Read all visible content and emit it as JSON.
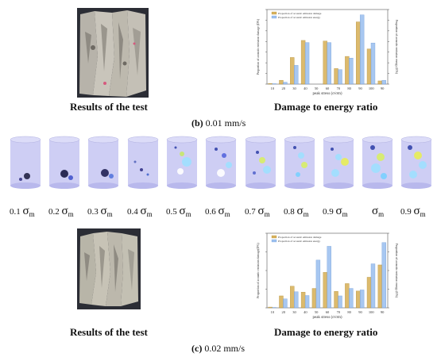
{
  "panel_b": {
    "label_letter": "(b)",
    "label_rate": "0.01 mm/s",
    "photo_caption": "Results of the test",
    "chart_caption": "Damage to energy ratio"
  },
  "panel_c": {
    "label_letter": "(c)",
    "label_rate": "0.02 mm/s",
    "photo_caption": "Results of the test",
    "chart_caption": "Damage to energy ratio"
  },
  "stress_levels": [
    {
      "coef": "0.1",
      "sym": "σ",
      "sub": "m"
    },
    {
      "coef": "0.2",
      "sym": "σ",
      "sub": "m"
    },
    {
      "coef": "0.3",
      "sym": "σ",
      "sub": "m"
    },
    {
      "coef": "0.4",
      "sym": "σ",
      "sub": "m"
    },
    {
      "coef": "0.5",
      "sym": "σ",
      "sub": "m"
    },
    {
      "coef": "0.6",
      "sym": "σ",
      "sub": "m"
    },
    {
      "coef": "0.7",
      "sym": "σ",
      "sub": "m"
    },
    {
      "coef": "0.8",
      "sym": "σ",
      "sub": "m"
    },
    {
      "coef": "0.9",
      "sym": "σ",
      "sub": "m"
    },
    {
      "coef": "",
      "sym": "σ",
      "sub": "m"
    },
    {
      "coef": "0.9",
      "sym": "σ",
      "sub": "m"
    }
  ],
  "colors": {
    "damage_bar": "#d9b35e",
    "energy_bar": "#9ec1f0",
    "damage_bar_edge": "#b08a2e",
    "energy_bar_edge": "#6d9ad6",
    "cylinder": "#c9c9f3",
    "photo_bg": "#2b2d35"
  },
  "chart_data": [
    {
      "type": "bar",
      "ylabel_left": "Proportion of acoustic emission damage (D%)",
      "ylabel_right": "Proportion of acoustic emission energy (E%)",
      "xlabel": "peak stress (σ/σm)",
      "categories": [
        "10",
        "20",
        "30",
        "40",
        "50",
        "60",
        "70",
        "80",
        "90",
        "100",
        "90"
      ],
      "ylim": [
        0,
        35
      ],
      "series": [
        {
          "name": "Proportion of acoustic emission damage",
          "values": [
            0.3,
            1.8,
            12.5,
            20.5,
            0,
            20.2,
            7.3,
            13,
            29.2,
            16.5,
            1.5
          ]
        },
        {
          "name": "Proportion of acoustic emission energy",
          "values": [
            0.2,
            0.9,
            8.8,
            19.5,
            0,
            19.5,
            6.8,
            12.2,
            32.5,
            19.3,
            1.8
          ]
        }
      ]
    },
    {
      "type": "bar",
      "ylabel_left": "Proportion of acoustic emission damage(D%)",
      "ylabel_right": "Proportion of acoustic emission energy (E%)",
      "xlabel": "peak stress (σ/σm)",
      "categories": [
        "10",
        "20",
        "30",
        "40",
        "50",
        "60",
        "70",
        "80",
        "90",
        "100",
        "90"
      ],
      "ylim": [
        0,
        20
      ],
      "series": [
        {
          "name": "Proportion of acoustic emission damage",
          "values": [
            0.2,
            3.2,
            5.8,
            4.2,
            5.2,
            9.5,
            4.4,
            6.5,
            4.5,
            8.2,
            11.5
          ]
        },
        {
          "name": "Proportion of acoustic emission energy",
          "values": [
            0.1,
            2.4,
            4.3,
            3.3,
            12.8,
            16.5,
            3.2,
            5.2,
            4.8,
            11.8,
            17.5
          ]
        }
      ]
    }
  ]
}
